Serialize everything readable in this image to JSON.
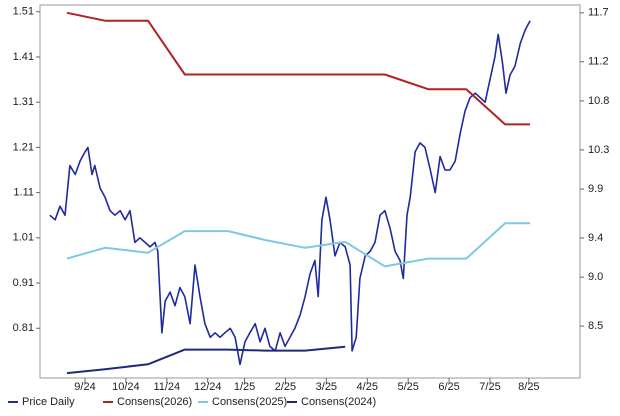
{
  "chart_data": {
    "type": "line",
    "xlim": [
      -1.1,
      12.1
    ],
    "xticks": [
      {
        "value": 0,
        "label": "9/24"
      },
      {
        "value": 1,
        "label": "10/24"
      },
      {
        "value": 2,
        "label": "11/24"
      },
      {
        "value": 3,
        "label": "12/24"
      },
      {
        "value": 3.9,
        "label": "1/25"
      },
      {
        "value": 4.9,
        "label": "2/25"
      },
      {
        "value": 5.9,
        "label": "3/25"
      },
      {
        "value": 6.9,
        "label": "4/25"
      },
      {
        "value": 7.9,
        "label": "5/25"
      },
      {
        "value": 8.9,
        "label": "6/25"
      },
      {
        "value": 9.9,
        "label": "7/25"
      },
      {
        "value": 10.85,
        "label": "8/25"
      }
    ],
    "ylim": [
      0.7,
      1.525
    ],
    "yticks": [
      1.51,
      1.41,
      1.31,
      1.21,
      1.11,
      1.01,
      0.91,
      0.81
    ],
    "y2lim": [
      7.97,
      11.78
    ],
    "y2ticks": [
      11.7,
      11.2,
      10.8,
      10.3,
      9.9,
      9.4,
      {
        "value": 9,
        "label": "9.0"
      },
      8.5
    ],
    "series": [
      {
        "name": "Price Daily",
        "color": "#1f2a9e",
        "axis": "y",
        "x": [
          -0.86,
          -0.73,
          -0.61,
          -0.49,
          -0.37,
          -0.24,
          -0.12,
          0,
          0.07,
          0.17,
          0.24,
          0.37,
          0.49,
          0.61,
          0.73,
          0.86,
          0.98,
          1.1,
          1.22,
          1.34,
          1.47,
          1.59,
          1.71,
          1.78,
          1.88,
          1.96,
          2.08,
          2.2,
          2.32,
          2.44,
          2.57,
          2.69,
          2.81,
          2.93,
          3.06,
          3.18,
          3.3,
          3.42,
          3.55,
          3.67,
          3.79,
          3.91,
          4.03,
          4.16,
          4.28,
          4.4,
          4.52,
          4.65,
          4.77,
          4.89,
          5.01,
          5.13,
          5.26,
          5.38,
          5.5,
          5.62,
          5.7,
          5.79,
          5.89,
          5.99,
          6.11,
          6.23,
          6.36,
          6.48,
          6.53,
          6.63,
          6.72,
          6.85,
          6.97,
          7.09,
          7.21,
          7.33,
          7.46,
          7.58,
          7.7,
          7.78,
          7.87,
          7.95,
          8.07,
          8.19,
          8.31,
          8.44,
          8.56,
          8.68,
          8.8,
          8.92,
          9.05,
          9.17,
          9.29,
          9.41,
          9.54,
          9.66,
          9.78,
          9.9,
          10.02,
          10.1,
          10.2,
          10.29,
          10.39,
          10.51,
          10.64,
          10.76,
          10.88
        ],
        "values": [
          1.06,
          1.05,
          1.08,
          1.06,
          1.17,
          1.15,
          1.18,
          1.2,
          1.21,
          1.15,
          1.17,
          1.12,
          1.1,
          1.07,
          1.06,
          1.07,
          1.05,
          1.07,
          1.0,
          1.01,
          1.0,
          0.99,
          1.0,
          0.98,
          0.8,
          0.87,
          0.89,
          0.86,
          0.9,
          0.88,
          0.82,
          0.95,
          0.88,
          0.82,
          0.79,
          0.8,
          0.79,
          0.8,
          0.81,
          0.79,
          0.73,
          0.78,
          0.8,
          0.82,
          0.78,
          0.81,
          0.77,
          0.76,
          0.8,
          0.77,
          0.79,
          0.81,
          0.84,
          0.88,
          0.93,
          0.96,
          0.88,
          1.05,
          1.1,
          1.05,
          0.97,
          1.0,
          0.99,
          0.95,
          0.76,
          0.79,
          0.92,
          0.97,
          0.98,
          1.0,
          1.06,
          1.07,
          1.03,
          0.98,
          0.96,
          0.92,
          1.06,
          1.1,
          1.2,
          1.22,
          1.21,
          1.16,
          1.11,
          1.19,
          1.16,
          1.16,
          1.18,
          1.24,
          1.29,
          1.32,
          1.33,
          1.32,
          1.31,
          1.36,
          1.41,
          1.46,
          1.4,
          1.33,
          1.37,
          1.39,
          1.44,
          1.47,
          1.49
        ]
      },
      {
        "name": "Consens(2026)",
        "color": "#b22222",
        "axis": "y2",
        "x": [
          -0.44,
          0.49,
          1.54,
          2.44,
          7.33,
          8.39,
          9.32,
          10.27,
          10.88
        ],
        "values": [
          11.7,
          11.62,
          11.62,
          11.07,
          11.07,
          10.92,
          10.92,
          10.56,
          10.56
        ]
      },
      {
        "name": "Consens(2025)",
        "color": "#7ec8e3",
        "axis": "y2",
        "x": [
          -0.44,
          0.49,
          1.54,
          2.44,
          3.5,
          4.4,
          5.38,
          6.36,
          7.33,
          8.39,
          9.32,
          10.27,
          10.88
        ],
        "values": [
          9.19,
          9.3,
          9.25,
          9.47,
          9.47,
          9.38,
          9.3,
          9.36,
          9.11,
          9.19,
          9.19,
          9.55,
          9.55
        ]
      },
      {
        "name": "Consens(2024)",
        "color": "#1f2a7a",
        "axis": "y2",
        "x": [
          -0.44,
          0.49,
          1.54,
          2.44,
          3.5,
          4.4,
          5.38,
          6.36
        ],
        "values": [
          8.02,
          8.06,
          8.11,
          8.26,
          8.26,
          8.25,
          8.25,
          8.29
        ]
      }
    ]
  }
}
